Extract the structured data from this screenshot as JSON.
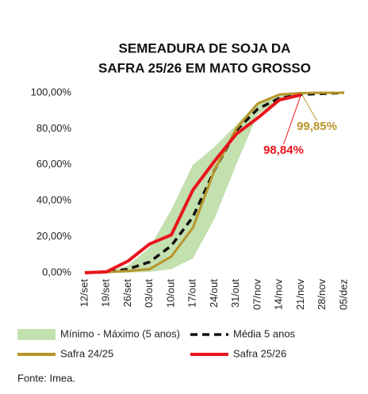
{
  "chart_data": {
    "type": "line",
    "title": [
      "SEMEADURA DE SOJA DA",
      "SAFRA 25/26 EM MATO GROSSO"
    ],
    "categories": [
      "12/set",
      "19/set",
      "26/set",
      "03/out",
      "10/out",
      "17/out",
      "24/out",
      "31/out",
      "07/nov",
      "14/nov",
      "21/nov",
      "28/nov",
      "05/dez"
    ],
    "ylim": [
      0,
      100
    ],
    "yticks": [
      {
        "value": 0,
        "label": "0,00%"
      },
      {
        "value": 20,
        "label": "20,00%"
      },
      {
        "value": 40,
        "label": "40,00%"
      },
      {
        "value": 60,
        "label": "60,00%"
      },
      {
        "value": 80,
        "label": "80,00%"
      },
      {
        "value": 100,
        "label": "100,00%"
      }
    ],
    "grid": false,
    "series": [
      {
        "name": "Mínimo - Máximo (5 anos)",
        "kind": "range",
        "color": "#c3e0af",
        "lower": [
          0,
          0,
          0,
          0.5,
          2,
          8,
          30,
          60,
          88,
          96,
          99,
          99.5,
          100
        ],
        "upper": [
          0,
          0.5,
          4,
          14,
          35,
          60,
          70,
          82,
          95,
          99,
          100,
          100,
          100
        ]
      },
      {
        "name": "Média 5 anos",
        "kind": "dashed",
        "color": "#111111",
        "values": [
          0,
          0.3,
          2,
          6,
          15,
          31,
          57,
          79,
          91,
          97,
          99,
          99.5,
          100
        ]
      },
      {
        "name": "Safra 24/25",
        "kind": "line",
        "color": "#b8952a",
        "values": [
          0,
          0.3,
          1,
          2,
          9,
          25,
          57,
          80,
          94,
          99,
          99.85,
          100,
          100
        ],
        "value_labels": [
          null,
          null,
          null,
          null,
          null,
          null,
          null,
          null,
          null,
          null,
          "99,85%",
          null,
          null
        ]
      },
      {
        "name": "Safra 25/26",
        "kind": "line",
        "color": "#e8141b",
        "values": [
          0,
          0.5,
          6.5,
          16,
          21,
          46,
          62,
          77,
          86,
          96,
          98.84,
          null,
          null
        ],
        "value_labels": [
          null,
          null,
          null,
          null,
          null,
          null,
          null,
          null,
          null,
          null,
          "98,84%",
          null,
          null
        ]
      }
    ],
    "source": "Fonte: Imea."
  }
}
